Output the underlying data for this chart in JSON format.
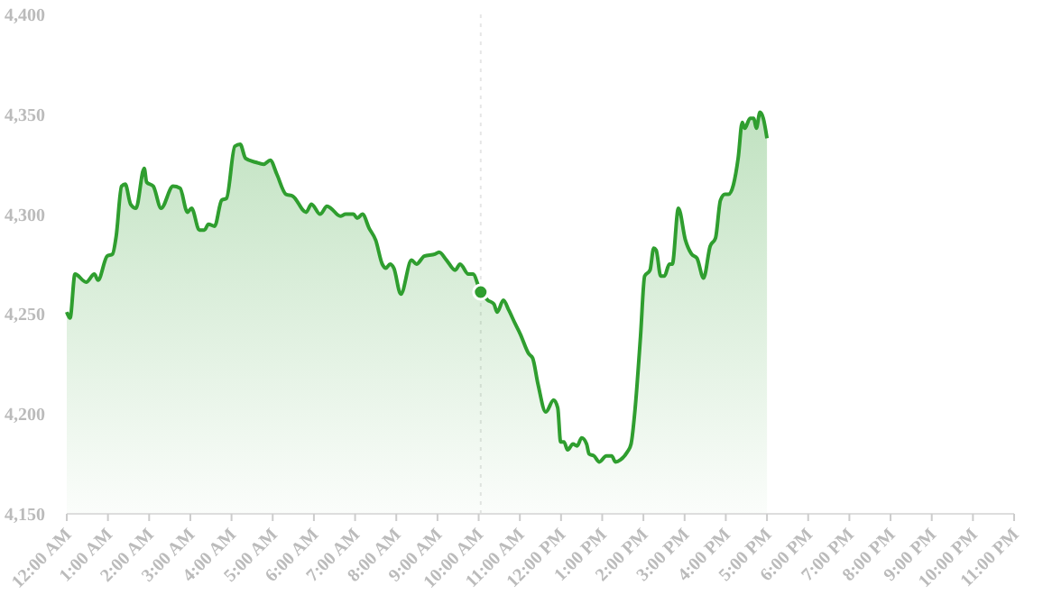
{
  "chart_data": {
    "type": "area",
    "x": [
      0,
      0.08,
      0.2,
      0.47,
      0.67,
      0.76,
      0.98,
      1.11,
      1.2,
      1.33,
      1.42,
      1.55,
      1.68,
      1.88,
      1.94,
      2.1,
      2.29,
      2.58,
      2.75,
      2.93,
      3.03,
      3.22,
      3.34,
      3.44,
      3.59,
      3.76,
      3.88,
      4.08,
      4.21,
      4.34,
      4.59,
      4.78,
      4.94,
      5.1,
      5.32,
      5.49,
      5.81,
      5.94,
      6.15,
      6.32,
      6.41,
      6.64,
      6.77,
      6.96,
      7.05,
      7.18,
      7.34,
      7.5,
      7.66,
      7.75,
      7.85,
      7.94,
      8.11,
      8.37,
      8.49,
      8.68,
      8.94,
      9.04,
      9.22,
      9.43,
      9.55,
      9.75,
      9.86,
      10.05,
      10.22,
      10.37,
      10.45,
      10.6,
      10.73,
      10.89,
      11.01,
      11.22,
      11.31,
      11.44,
      11.63,
      11.82,
      11.92,
      11.99,
      12.07,
      12.16,
      12.29,
      12.39,
      12.5,
      12.62,
      12.68,
      12.8,
      12.93,
      13.1,
      13.23,
      13.32,
      13.44,
      13.61,
      13.7,
      13.8,
      13.93,
      14.03,
      14.16,
      14.25,
      14.31,
      14.42,
      14.51,
      14.63,
      14.7,
      14.85,
      15.02,
      15.17,
      15.3,
      15.46,
      15.62,
      15.75,
      15.87,
      15.98,
      16.07,
      16.3,
      16.4,
      16.46,
      16.59,
      16.68,
      16.74,
      16.83,
      16.91,
      17
    ],
    "series": [
      {
        "color": "#2f9e2f",
        "values": [
          4251,
          4248,
          4270,
          4266,
          4270,
          4267,
          4279,
          4280,
          4289,
          4314,
          4315,
          4305,
          4303,
          4323,
          4316,
          4314,
          4303,
          4314,
          4313,
          4301,
          4303,
          4292,
          4292,
          4295,
          4294,
          4307,
          4308,
          4334,
          4335,
          4328,
          4326,
          4325,
          4327,
          4320,
          4310,
          4309,
          4301,
          4305,
          4300,
          4304,
          4303,
          4299,
          4300,
          4300,
          4298,
          4300,
          4293,
          4287,
          4275,
          4273,
          4275,
          4273,
          4260,
          4277,
          4275,
          4279,
          4280,
          4281,
          4277,
          4272,
          4275,
          4270,
          4270,
          4261,
          4257,
          4255,
          4251,
          4257,
          4252,
          4245,
          4240,
          4230,
          4228,
          4215,
          4201,
          4207,
          4203,
          4186,
          4186,
          4182,
          4185,
          4184,
          4188,
          4185,
          4180,
          4179,
          4176,
          4179,
          4179,
          4176,
          4177,
          4181,
          4185,
          4203,
          4239,
          4269,
          4272,
          4283,
          4282,
          4269,
          4269,
          4275,
          4275,
          4303,
          4287,
          4280,
          4278,
          4268,
          4284,
          4288,
          4307,
          4310,
          4310,
          4328,
          4346,
          4343,
          4348,
          4348,
          4343,
          4351,
          4348,
          4338
        ]
      },
      {
        "type": "scatter",
        "color": "#2f9e2f",
        "x": [
          10.05
        ],
        "values": [
          4261
        ]
      }
    ],
    "xlim": [
      0,
      23
    ],
    "xticks": [
      {
        "value": 0,
        "label": "12:00 AM"
      },
      {
        "value": 1,
        "label": "1:00 AM"
      },
      {
        "value": 2,
        "label": "2:00 AM"
      },
      {
        "value": 3,
        "label": "3:00 AM"
      },
      {
        "value": 4,
        "label": "4:00 AM"
      },
      {
        "value": 5,
        "label": "5:00 AM"
      },
      {
        "value": 6,
        "label": "6:00 AM"
      },
      {
        "value": 7,
        "label": "7:00 AM"
      },
      {
        "value": 8,
        "label": "8:00 AM"
      },
      {
        "value": 9,
        "label": "9:00 AM"
      },
      {
        "value": 10,
        "label": "10:00 AM"
      },
      {
        "value": 11,
        "label": "11:00 AM"
      },
      {
        "value": 12,
        "label": "12:00 PM"
      },
      {
        "value": 13,
        "label": "1:00 PM"
      },
      {
        "value": 14,
        "label": "2:00 PM"
      },
      {
        "value": 15,
        "label": "3:00 PM"
      },
      {
        "value": 16,
        "label": "4:00 PM"
      },
      {
        "value": 17,
        "label": "5:00 PM"
      },
      {
        "value": 18,
        "label": "6:00 PM"
      },
      {
        "value": 19,
        "label": "7:00 PM"
      },
      {
        "value": 20,
        "label": "8:00 PM"
      },
      {
        "value": 21,
        "label": "9:00 PM"
      },
      {
        "value": 22,
        "label": "10:00 PM"
      },
      {
        "value": 23,
        "label": "11:00 PM"
      }
    ],
    "ylim": [
      4150,
      4400
    ],
    "yticks": [
      {
        "value": 4150,
        "label": "4,150"
      },
      {
        "value": 4200,
        "label": "4,200"
      },
      {
        "value": 4250,
        "label": "4,250"
      },
      {
        "value": 4300,
        "label": "4,300"
      },
      {
        "value": 4350,
        "label": "4,350"
      },
      {
        "value": 4400,
        "label": "4,400"
      }
    ],
    "ref_lines": [
      {
        "axis": "x",
        "value": 10.05,
        "line_style": "dotted",
        "color": "#e6e6e6"
      }
    ],
    "grid": false,
    "line_style": "solid"
  }
}
